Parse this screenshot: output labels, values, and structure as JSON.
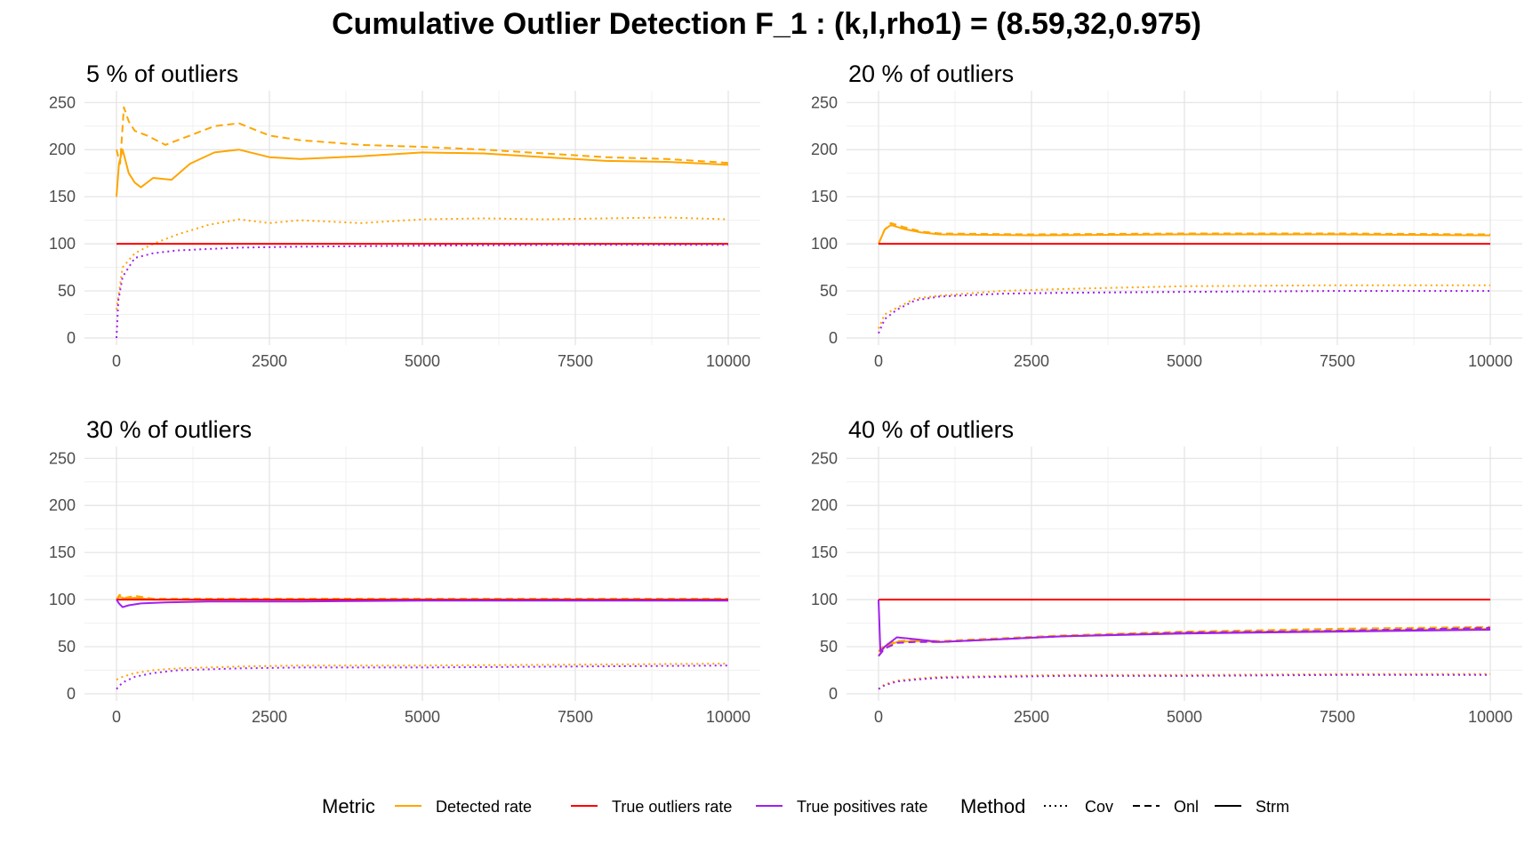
{
  "title": "Cumulative Outlier Detection F_1 : (k,l,rho1) = (8.59,32,0.975)",
  "legend": {
    "metric_title": "Metric",
    "method_title": "Method",
    "metrics": [
      {
        "label": "Detected rate",
        "color": "#FFA500"
      },
      {
        "label": "True outliers rate",
        "color": "#FF0000"
      },
      {
        "label": "True positives rate",
        "color": "#A020F0"
      }
    ],
    "methods": [
      {
        "label": "Cov",
        "dash": "dotted"
      },
      {
        "label": "Onl",
        "dash": "dashed"
      },
      {
        "label": "Strm",
        "dash": "solid"
      }
    ]
  },
  "chart_data": [
    {
      "type": "line",
      "title": "5 % of outliers",
      "xlabel": "",
      "ylabel": "",
      "xlim": [
        0,
        10000
      ],
      "ylim": [
        0,
        255
      ],
      "x_ticks": [
        0,
        2500,
        5000,
        7500,
        10000
      ],
      "y_ticks": [
        0,
        50,
        100,
        150,
        200,
        250
      ],
      "grid": true,
      "series": [
        {
          "metric": "Detected rate",
          "method": "Onl",
          "x": [
            0,
            60,
            120,
            200,
            300,
            500,
            800,
            1200,
            1600,
            2000,
            2500,
            3000,
            4000,
            5000,
            6000,
            7000,
            8000,
            9000,
            10000
          ],
          "y": [
            200,
            185,
            245,
            230,
            220,
            215,
            205,
            215,
            225,
            228,
            215,
            210,
            205,
            203,
            200,
            196,
            192,
            190,
            186
          ]
        },
        {
          "metric": "Detected rate",
          "method": "Strm",
          "x": [
            0,
            40,
            100,
            200,
            300,
            400,
            600,
            900,
            1200,
            1600,
            2000,
            2500,
            3000,
            4000,
            5000,
            6000,
            7000,
            8000,
            9000,
            10000
          ],
          "y": [
            150,
            185,
            200,
            175,
            165,
            160,
            170,
            168,
            185,
            197,
            200,
            192,
            190,
            193,
            197,
            196,
            192,
            188,
            187,
            184
          ]
        },
        {
          "metric": "Detected rate",
          "method": "Cov",
          "x": [
            0,
            100,
            300,
            600,
            1000,
            1500,
            2000,
            2500,
            3000,
            4000,
            5000,
            6000,
            7000,
            8000,
            9000,
            10000
          ],
          "y": [
            30,
            75,
            90,
            100,
            110,
            120,
            126,
            122,
            125,
            122,
            126,
            127,
            126,
            127,
            128,
            126
          ]
        },
        {
          "metric": "True outliers rate",
          "method": "Strm",
          "x": [
            0,
            10000
          ],
          "y": [
            100,
            100
          ]
        },
        {
          "metric": "True positives rate",
          "method": "Cov",
          "x": [
            0,
            30,
            100,
            300,
            600,
            1000,
            2000,
            3000,
            5000,
            7500,
            10000
          ],
          "y": [
            0,
            40,
            65,
            85,
            90,
            93,
            96,
            97,
            98,
            99,
            99
          ]
        }
      ]
    },
    {
      "type": "line",
      "title": "20 % of outliers",
      "xlabel": "",
      "ylabel": "",
      "xlim": [
        0,
        10000
      ],
      "ylim": [
        0,
        255
      ],
      "x_ticks": [
        0,
        2500,
        5000,
        7500,
        10000
      ],
      "y_ticks": [
        0,
        50,
        100,
        150,
        200,
        250
      ],
      "grid": true,
      "series": [
        {
          "metric": "Detected rate",
          "method": "Onl",
          "x": [
            0,
            100,
            200,
            400,
            700,
            1000,
            2500,
            5000,
            7500,
            10000
          ],
          "y": [
            100,
            115,
            122,
            118,
            113,
            111,
            110,
            111,
            111,
            110
          ]
        },
        {
          "metric": "Detected rate",
          "method": "Strm",
          "x": [
            0,
            100,
            200,
            400,
            700,
            1000,
            2500,
            5000,
            7500,
            10000
          ],
          "y": [
            100,
            115,
            120,
            116,
            112,
            110,
            109,
            110,
            110,
            109
          ]
        },
        {
          "metric": "Detected rate",
          "method": "Cov",
          "x": [
            0,
            100,
            300,
            600,
            1000,
            2000,
            3000,
            5000,
            7500,
            10000
          ],
          "y": [
            10,
            25,
            32,
            42,
            45,
            50,
            52,
            55,
            56,
            56
          ]
        },
        {
          "metric": "True outliers rate",
          "method": "Strm",
          "x": [
            0,
            10000
          ],
          "y": [
            100,
            100
          ]
        },
        {
          "metric": "True positives rate",
          "method": "Cov",
          "x": [
            0,
            100,
            300,
            600,
            1000,
            2000,
            3000,
            5000,
            7500,
            10000
          ],
          "y": [
            5,
            20,
            30,
            40,
            44,
            47,
            48,
            49,
            50,
            50
          ]
        }
      ]
    },
    {
      "type": "line",
      "title": "30 % of outliers",
      "xlabel": "",
      "ylabel": "",
      "xlim": [
        0,
        10000
      ],
      "ylim": [
        0,
        255
      ],
      "x_ticks": [
        0,
        2500,
        5000,
        7500,
        10000
      ],
      "y_ticks": [
        0,
        50,
        100,
        150,
        200,
        250
      ],
      "grid": true,
      "series": [
        {
          "metric": "Detected rate",
          "method": "Onl",
          "x": [
            0,
            50,
            150,
            300,
            600,
            1000,
            2500,
            5000,
            7500,
            10000
          ],
          "y": [
            100,
            105,
            102,
            104,
            101,
            101,
            101,
            101,
            101,
            101
          ]
        },
        {
          "metric": "Detected rate",
          "method": "Strm",
          "x": [
            0,
            50,
            150,
            300,
            600,
            1000,
            2500,
            5000,
            7500,
            10000
          ],
          "y": [
            100,
            103,
            101,
            102,
            100,
            100,
            100,
            100,
            100,
            100
          ]
        },
        {
          "metric": "Detected rate",
          "method": "Cov",
          "x": [
            0,
            100,
            300,
            600,
            1000,
            2000,
            3000,
            5000,
            7500,
            10000
          ],
          "y": [
            15,
            18,
            22,
            25,
            27,
            29,
            30,
            30,
            31,
            32
          ]
        },
        {
          "metric": "True outliers rate",
          "method": "Strm",
          "x": [
            0,
            10000
          ],
          "y": [
            100,
            100
          ]
        },
        {
          "metric": "True positives rate",
          "method": "Strm",
          "x": [
            0,
            40,
            100,
            200,
            400,
            800,
            1500,
            3000,
            5000,
            7500,
            10000
          ],
          "y": [
            100,
            96,
            92,
            94,
            96,
            97,
            98,
            98,
            99,
            99,
            99
          ]
        },
        {
          "metric": "True positives rate",
          "method": "Cov",
          "x": [
            0,
            100,
            300,
            600,
            1000,
            2000,
            3000,
            5000,
            7500,
            10000
          ],
          "y": [
            5,
            12,
            18,
            22,
            25,
            27,
            28,
            28,
            29,
            30
          ]
        }
      ]
    },
    {
      "type": "line",
      "title": "40 % of outliers",
      "xlabel": "",
      "ylabel": "",
      "xlim": [
        0,
        10000
      ],
      "ylim": [
        0,
        255
      ],
      "x_ticks": [
        0,
        2500,
        5000,
        7500,
        10000
      ],
      "y_ticks": [
        0,
        50,
        100,
        150,
        200,
        250
      ],
      "grid": true,
      "series": [
        {
          "metric": "Detected rate",
          "method": "Onl",
          "x": [
            0,
            100,
            300,
            600,
            1000,
            2000,
            3000,
            5000,
            7500,
            10000
          ],
          "y": [
            45,
            52,
            56,
            57,
            56,
            59,
            62,
            66,
            69,
            71
          ]
        },
        {
          "metric": "Detected rate",
          "method": "Strm",
          "x": [
            0,
            100,
            300,
            600,
            1000,
            2000,
            3000,
            5000,
            7500,
            10000
          ],
          "y": [
            40,
            50,
            55,
            56,
            55,
            58,
            61,
            65,
            67,
            69
          ]
        },
        {
          "metric": "Detected rate",
          "method": "Cov",
          "x": [
            0,
            100,
            300,
            600,
            1000,
            2000,
            3000,
            5000,
            7500,
            10000
          ],
          "y": [
            5,
            10,
            14,
            16,
            18,
            19,
            20,
            20,
            21,
            21
          ]
        },
        {
          "metric": "True outliers rate",
          "method": "Strm",
          "x": [
            0,
            10000
          ],
          "y": [
            100,
            100
          ]
        },
        {
          "metric": "True positives rate",
          "method": "Onl",
          "x": [
            0,
            100,
            300,
            600,
            1000,
            2000,
            3000,
            5000,
            7500,
            10000
          ],
          "y": [
            40,
            48,
            54,
            55,
            55,
            58,
            61,
            65,
            67,
            70
          ]
        },
        {
          "metric": "True positives rate",
          "method": "Strm",
          "x": [
            0,
            30,
            100,
            300,
            600,
            1000,
            2000,
            3000,
            5000,
            7500,
            10000
          ],
          "y": [
            100,
            45,
            50,
            60,
            58,
            55,
            58,
            61,
            64,
            66,
            68
          ]
        },
        {
          "metric": "True positives rate",
          "method": "Cov",
          "x": [
            0,
            100,
            300,
            600,
            1000,
            2000,
            3000,
            5000,
            7500,
            10000
          ],
          "y": [
            5,
            9,
            13,
            15,
            17,
            18,
            19,
            19,
            20,
            20
          ]
        }
      ]
    }
  ]
}
